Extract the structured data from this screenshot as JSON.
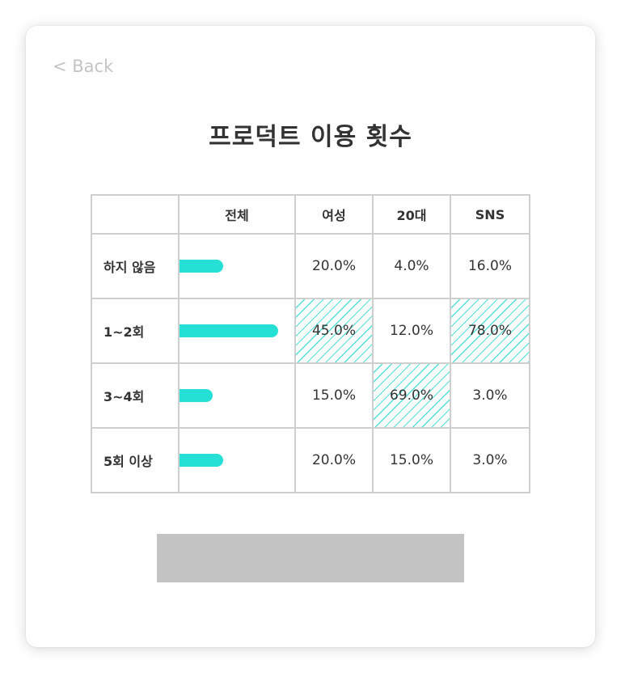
{
  "nav": {
    "back_label": "< Back"
  },
  "title": "프로덕트 이용 횟수",
  "highlight_color": "#25e0d4",
  "chart_data": {
    "type": "table",
    "columns": [
      "",
      "전체",
      "여성",
      "20대",
      "SNS"
    ],
    "rows": [
      {
        "label": "하지 않음",
        "total": 20.0,
        "values": [
          "20.0%",
          "4.0%",
          "16.0%"
        ],
        "highlight": [
          false,
          false,
          false
        ]
      },
      {
        "label": "1~2회",
        "total": 45.0,
        "values": [
          "45.0%",
          "12.0%",
          "78.0%"
        ],
        "highlight": [
          true,
          false,
          true
        ]
      },
      {
        "label": "3~4회",
        "total": 15.0,
        "values": [
          "15.0%",
          "69.0%",
          "3.0%"
        ],
        "highlight": [
          false,
          true,
          false
        ]
      },
      {
        "label": "5회 이상",
        "total": 20.0,
        "values": [
          "20.0%",
          "15.0%",
          "3.0%"
        ],
        "highlight": [
          false,
          false,
          false
        ]
      }
    ],
    "bar_max": 45.0,
    "legend": "none",
    "grid": true
  }
}
